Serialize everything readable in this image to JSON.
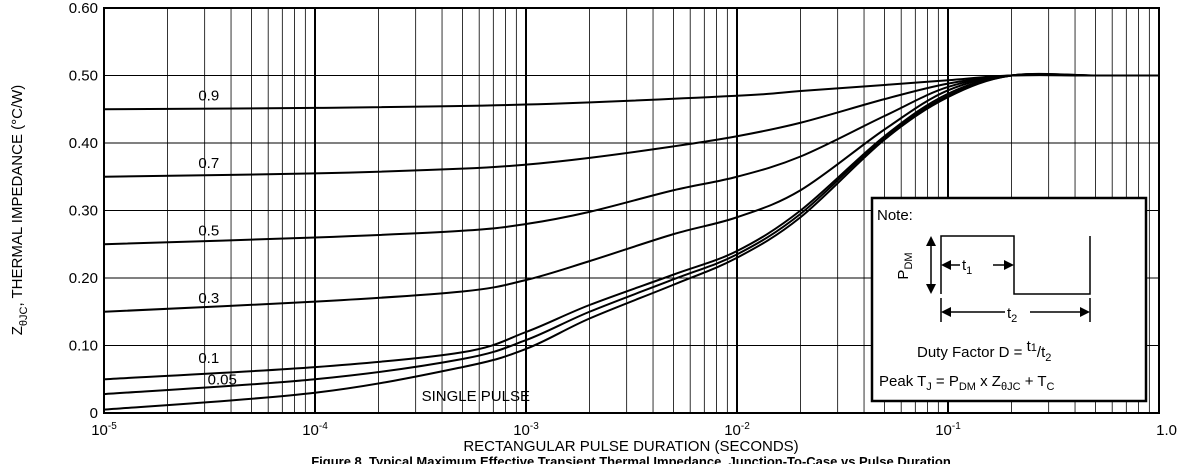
{
  "chart_data": {
    "type": "line",
    "title": "",
    "caption": "Figure 8. Typical Maximum Effective Transient Thermal Impedance, Junction-To-Case vs Pulse Duration",
    "xlabel": "RECTANGULAR PULSE DURATION (SECONDS)",
    "ylabel_main": "Z",
    "ylabel_sub": "θJC",
    "ylabel_rest": ", THERMAL IMPEDANCE (°C/W)",
    "x_scale": "log",
    "xlim": [
      1e-05,
      1.0
    ],
    "ylim": [
      0,
      0.6
    ],
    "grid": true,
    "x_ticks": [
      {
        "value": 1e-05,
        "base": "10",
        "exp": "-5"
      },
      {
        "value": 0.0001,
        "base": "10",
        "exp": "-4"
      },
      {
        "value": 0.001,
        "base": "10",
        "exp": "-3"
      },
      {
        "value": 0.01,
        "base": "10",
        "exp": "-2"
      },
      {
        "value": 0.1,
        "base": "10",
        "exp": "-1"
      },
      {
        "value": 1.0,
        "base": "1.0",
        "exp": ""
      }
    ],
    "y_ticks": [
      {
        "value": 0,
        "label": "0"
      },
      {
        "value": 0.1,
        "label": "0.10"
      },
      {
        "value": 0.2,
        "label": "0.20"
      },
      {
        "value": 0.3,
        "label": "0.30"
      },
      {
        "value": 0.4,
        "label": "0.40"
      },
      {
        "value": 0.5,
        "label": "0.50"
      },
      {
        "value": 0.6,
        "label": "0.60"
      }
    ],
    "series": [
      {
        "name": "0.9",
        "label_x": 2.8e-05,
        "label_y": 0.457,
        "points": [
          [
            1e-05,
            0.45
          ],
          [
            0.0001,
            0.452
          ],
          [
            0.001,
            0.457
          ],
          [
            0.01,
            0.47
          ],
          [
            0.02,
            0.477
          ],
          [
            0.05,
            0.486
          ],
          [
            0.1,
            0.493
          ],
          [
            0.2,
            0.5
          ],
          [
            0.5,
            0.5
          ],
          [
            1.0,
            0.5
          ]
        ]
      },
      {
        "name": "0.7",
        "label_x": 2.8e-05,
        "label_y": 0.357,
        "points": [
          [
            1e-05,
            0.35
          ],
          [
            0.0001,
            0.355
          ],
          [
            0.0005,
            0.362
          ],
          [
            0.001,
            0.368
          ],
          [
            0.002,
            0.378
          ],
          [
            0.005,
            0.395
          ],
          [
            0.01,
            0.41
          ],
          [
            0.02,
            0.43
          ],
          [
            0.05,
            0.465
          ],
          [
            0.1,
            0.488
          ],
          [
            0.2,
            0.5
          ],
          [
            0.5,
            0.5
          ],
          [
            1.0,
            0.5
          ]
        ]
      },
      {
        "name": "0.5",
        "label_x": 2.8e-05,
        "label_y": 0.257,
        "points": [
          [
            1e-05,
            0.25
          ],
          [
            0.0001,
            0.26
          ],
          [
            0.0005,
            0.27
          ],
          [
            0.001,
            0.28
          ],
          [
            0.002,
            0.298
          ],
          [
            0.005,
            0.33
          ],
          [
            0.01,
            0.35
          ],
          [
            0.02,
            0.38
          ],
          [
            0.05,
            0.44
          ],
          [
            0.1,
            0.483
          ],
          [
            0.2,
            0.5
          ],
          [
            0.5,
            0.5
          ],
          [
            1.0,
            0.5
          ]
        ]
      },
      {
        "name": "0.3",
        "label_x": 2.8e-05,
        "label_y": 0.157,
        "points": [
          [
            1e-05,
            0.15
          ],
          [
            0.0001,
            0.165
          ],
          [
            0.0005,
            0.18
          ],
          [
            0.001,
            0.197
          ],
          [
            0.002,
            0.225
          ],
          [
            0.005,
            0.265
          ],
          [
            0.01,
            0.29
          ],
          [
            0.02,
            0.33
          ],
          [
            0.05,
            0.42
          ],
          [
            0.1,
            0.478
          ],
          [
            0.2,
            0.5
          ],
          [
            0.5,
            0.5
          ],
          [
            1.0,
            0.5
          ]
        ]
      },
      {
        "name": "0.1",
        "label_x": 2.8e-05,
        "label_y": 0.068,
        "points": [
          [
            1e-05,
            0.05
          ],
          [
            0.0001,
            0.068
          ],
          [
            0.0005,
            0.09
          ],
          [
            0.001,
            0.12
          ],
          [
            0.002,
            0.16
          ],
          [
            0.005,
            0.205
          ],
          [
            0.01,
            0.24
          ],
          [
            0.02,
            0.3
          ],
          [
            0.05,
            0.41
          ],
          [
            0.1,
            0.473
          ],
          [
            0.2,
            0.5
          ],
          [
            0.5,
            0.5
          ],
          [
            1.0,
            0.5
          ]
        ]
      },
      {
        "name": "0.05",
        "label_x": 3.1e-05,
        "label_y": 0.036,
        "points": [
          [
            1e-05,
            0.028
          ],
          [
            0.0001,
            0.05
          ],
          [
            0.0005,
            0.08
          ],
          [
            0.001,
            0.108
          ],
          [
            0.002,
            0.15
          ],
          [
            0.005,
            0.198
          ],
          [
            0.01,
            0.235
          ],
          [
            0.02,
            0.295
          ],
          [
            0.05,
            0.408
          ],
          [
            0.1,
            0.47
          ],
          [
            0.2,
            0.5
          ],
          [
            0.5,
            0.5
          ],
          [
            1.0,
            0.5
          ]
        ]
      },
      {
        "name": "SINGLE PULSE",
        "label_x": 0.00032,
        "label_y": 0.012,
        "points": [
          [
            1e-05,
            0.005
          ],
          [
            0.0001,
            0.03
          ],
          [
            0.0005,
            0.068
          ],
          [
            0.001,
            0.095
          ],
          [
            0.002,
            0.14
          ],
          [
            0.005,
            0.19
          ],
          [
            0.01,
            0.23
          ],
          [
            0.02,
            0.29
          ],
          [
            0.05,
            0.405
          ],
          [
            0.1,
            0.468
          ],
          [
            0.2,
            0.5
          ],
          [
            0.5,
            0.5
          ],
          [
            1.0,
            0.5
          ]
        ]
      }
    ]
  },
  "note": {
    "title": "Note:",
    "pdm_main": "P",
    "pdm_sub": "DM",
    "t1_main": "t",
    "t1_sub": "1",
    "t2_main": "t",
    "t2_sub": "2",
    "duty_prefix": "Duty Factor  D = ",
    "duty_num_main": "t",
    "duty_num_sub": "1",
    "duty_slash": "/",
    "duty_den_main": "t",
    "duty_den_sub": "2",
    "peak_prefix": "Peak T",
    "peak_tj_sub": "J",
    "peak_eq": " = P",
    "peak_pdm_sub": "DM",
    "peak_x": " x Z",
    "peak_z_sub": "θJC",
    "peak_plus": " + T",
    "peak_tc_sub": "C"
  }
}
